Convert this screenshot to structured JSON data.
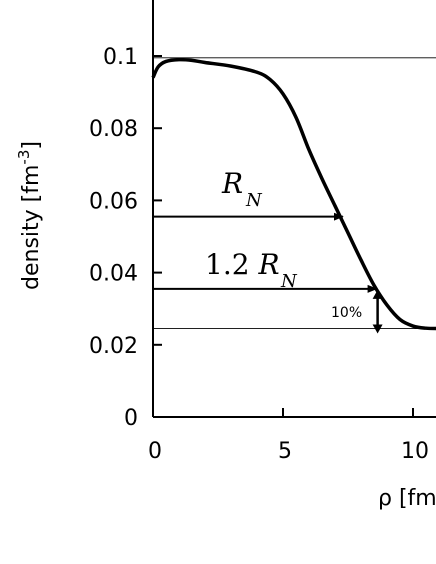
{
  "chart_data": {
    "type": "line",
    "xlabel": "ρ [fm]",
    "ylabel": "density [fm",
    "ylabel_sup": "-3",
    "ylabel_end": "]",
    "xlim": [
      0,
      11
    ],
    "ylim": [
      0,
      0.115
    ],
    "x_ticks": [
      0,
      5,
      10
    ],
    "x_tick_labels": [
      "0",
      "5",
      "10"
    ],
    "y_ticks": [
      0,
      0.02,
      0.04,
      0.06,
      0.08,
      0.1
    ],
    "y_tick_labels": [
      "0",
      "0.02",
      "0.04",
      "0.06",
      "0.08",
      "0.1"
    ],
    "grid": false,
    "reference_lines": [
      0.0995,
      0.0245
    ],
    "series": [
      {
        "x": [
          0,
          0.2,
          0.5,
          1,
          1.5,
          2,
          3,
          4,
          4.5,
          5,
          5.5,
          6,
          6.5,
          7,
          7.5,
          8,
          8.5,
          9,
          9.5,
          10,
          10.5,
          11
        ],
        "y": [
          0.094,
          0.097,
          0.0985,
          0.099,
          0.0988,
          0.0982,
          0.0972,
          0.0955,
          0.0935,
          0.0895,
          0.083,
          0.074,
          0.066,
          0.0585,
          0.051,
          0.0435,
          0.0365,
          0.031,
          0.027,
          0.0252,
          0.0246,
          0.0245
        ]
      }
    ],
    "annotations": {
      "rn": {
        "label": "R",
        "sub": "N",
        "arrow_x": [
          0,
          7.3
        ],
        "arrow_y": 0.0555
      },
      "rn12": {
        "prefix": "1.2 ",
        "label": "R",
        "sub": "N",
        "arrow_x": [
          0,
          8.6
        ],
        "arrow_y": 0.0355
      },
      "pct": {
        "label": "10%",
        "x": 8.6,
        "y_from": 0.0355,
        "y_to": 0.0245
      }
    }
  }
}
